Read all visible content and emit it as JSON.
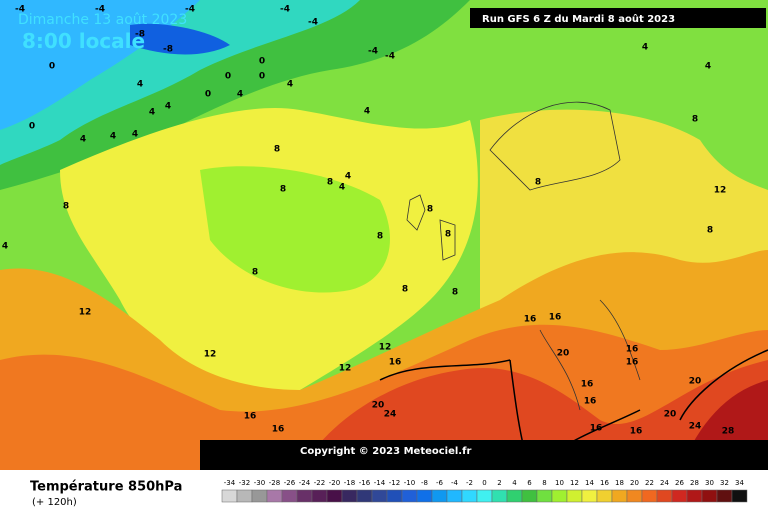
{
  "header": {
    "date": "Dimanche 13 août 2023",
    "time": "8:00 locale",
    "run": "Run GFS 6 Z du Mardi 8 août 2023"
  },
  "copyright": "Copyright © 2023 Meteociel.fr",
  "footer": {
    "title": "Température 850hPa",
    "subtitle": "(+ 120h)"
  },
  "legend": {
    "labels": [
      -34,
      -32,
      -30,
      -28,
      -26,
      -24,
      -22,
      -20,
      -18,
      -16,
      -14,
      -12,
      -10,
      -8,
      -6,
      -4,
      -2,
      0,
      2,
      4,
      6,
      8,
      10,
      12,
      14,
      16,
      18,
      20,
      22,
      24,
      26,
      28,
      30,
      32,
      34
    ],
    "colors": [
      "#d8d8d8",
      "#b8b8b8",
      "#989898",
      "#a878a8",
      "#885088",
      "#683068",
      "#582058",
      "#481048",
      "#382860",
      "#303878",
      "#304898",
      "#2050b8",
      "#2060d8",
      "#1070e8",
      "#1098f0",
      "#20b8ff",
      "#30d8ff",
      "#40f0f0",
      "#30e0b0",
      "#30d070",
      "#40c040",
      "#70e040",
      "#a0f030",
      "#d0f030",
      "#f0f040",
      "#f0d030",
      "#f0a820",
      "#f08820",
      "#f06820",
      "#e04820",
      "#d02820",
      "#b01818",
      "#901010",
      "#601010",
      "#101010"
    ]
  },
  "map_labels": [
    -4,
    -4,
    -4,
    -4,
    -4,
    -8,
    -8,
    -4,
    -4,
    0,
    0,
    0,
    0,
    0,
    0,
    4,
    4,
    4,
    4,
    4,
    4,
    4,
    4,
    4,
    4,
    4,
    4,
    4,
    4,
    8,
    8,
    8,
    8,
    8,
    8,
    8,
    8,
    8,
    8,
    8,
    8,
    8,
    12,
    12,
    12,
    12,
    12,
    16,
    16,
    16,
    16,
    16,
    16,
    16,
    16,
    16,
    16,
    16,
    16,
    20,
    20,
    20,
    20,
    24,
    24,
    28,
    28,
    20
  ]
}
